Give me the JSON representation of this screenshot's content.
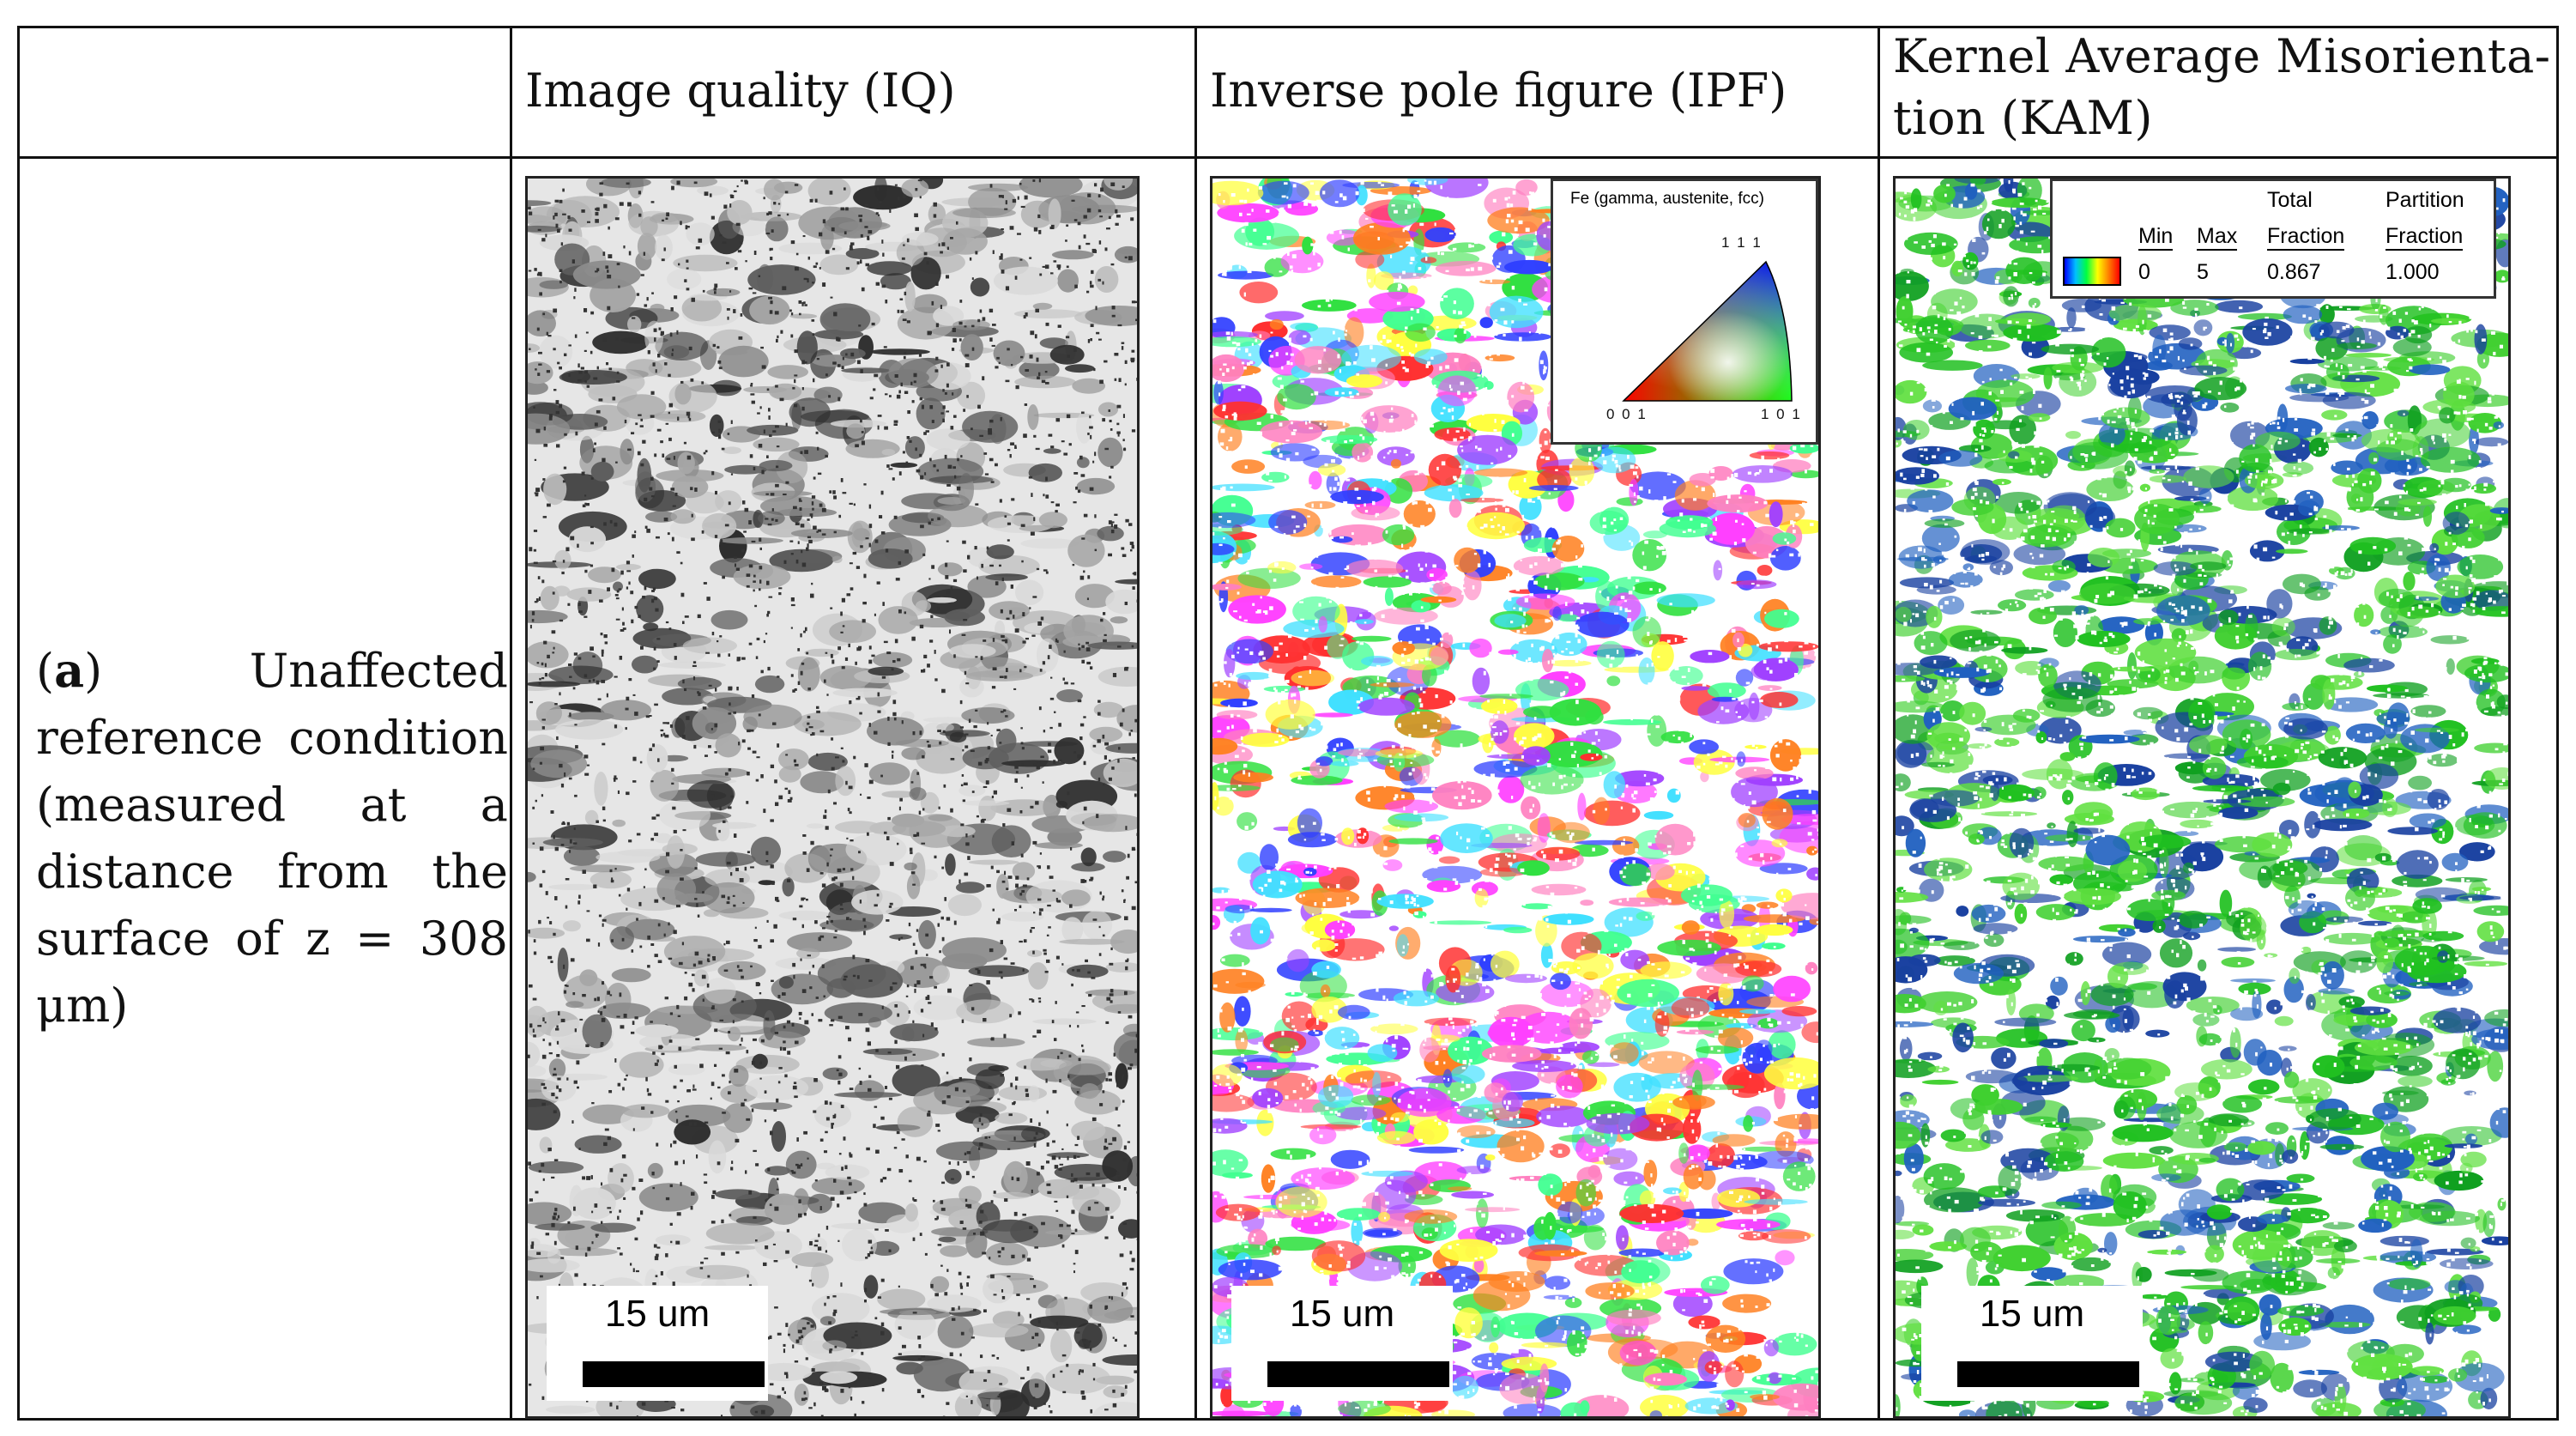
{
  "table": {
    "headers": {
      "col1": "",
      "col2": "Image quality (IQ)",
      "col3": "Inverse pole figure (IPF)",
      "col4_line1": "Kernel Average Misorienta-",
      "col4_line2": "tion (KAM)"
    },
    "row_label": {
      "bold_part": "a",
      "text": "Unaffected reference condition (measured at a distance from the surface of z = 308 μm)"
    }
  },
  "panels": {
    "iq": {
      "scale_text": "15 um",
      "palette": [
        "#d9d9d9",
        "#c0c0c0",
        "#a6a6a6",
        "#8c8c8c",
        "#5e5e5e",
        "#2e2e2e"
      ]
    },
    "ipf": {
      "scale_text": "15 um",
      "legend_title": "Fe (gamma, austenite, fcc)",
      "legend_111": "1 1 1",
      "legend_001": "0 0 1",
      "legend_101": "1 0 1",
      "palette": [
        "#ff3030",
        "#3040ff",
        "#30e040",
        "#ff40ff",
        "#40e0ff",
        "#ffff40",
        "#ff8020",
        "#a040ff",
        "#40ff90",
        "#ff80c0"
      ]
    },
    "kam": {
      "scale_text": "15 um",
      "legend": {
        "min_label": "Min",
        "max_label": "Max",
        "total_label_1": "Total",
        "total_label_2": "Fraction",
        "part_label_1": "Partition",
        "part_label_2": "Fraction",
        "min_value": "0",
        "max_value": "5",
        "total_value": "0.867",
        "part_value": "1.000"
      },
      "palette": [
        "#20c020",
        "#40d030",
        "#10a020",
        "#2060c0",
        "#1840a0",
        "#60e040"
      ]
    }
  }
}
